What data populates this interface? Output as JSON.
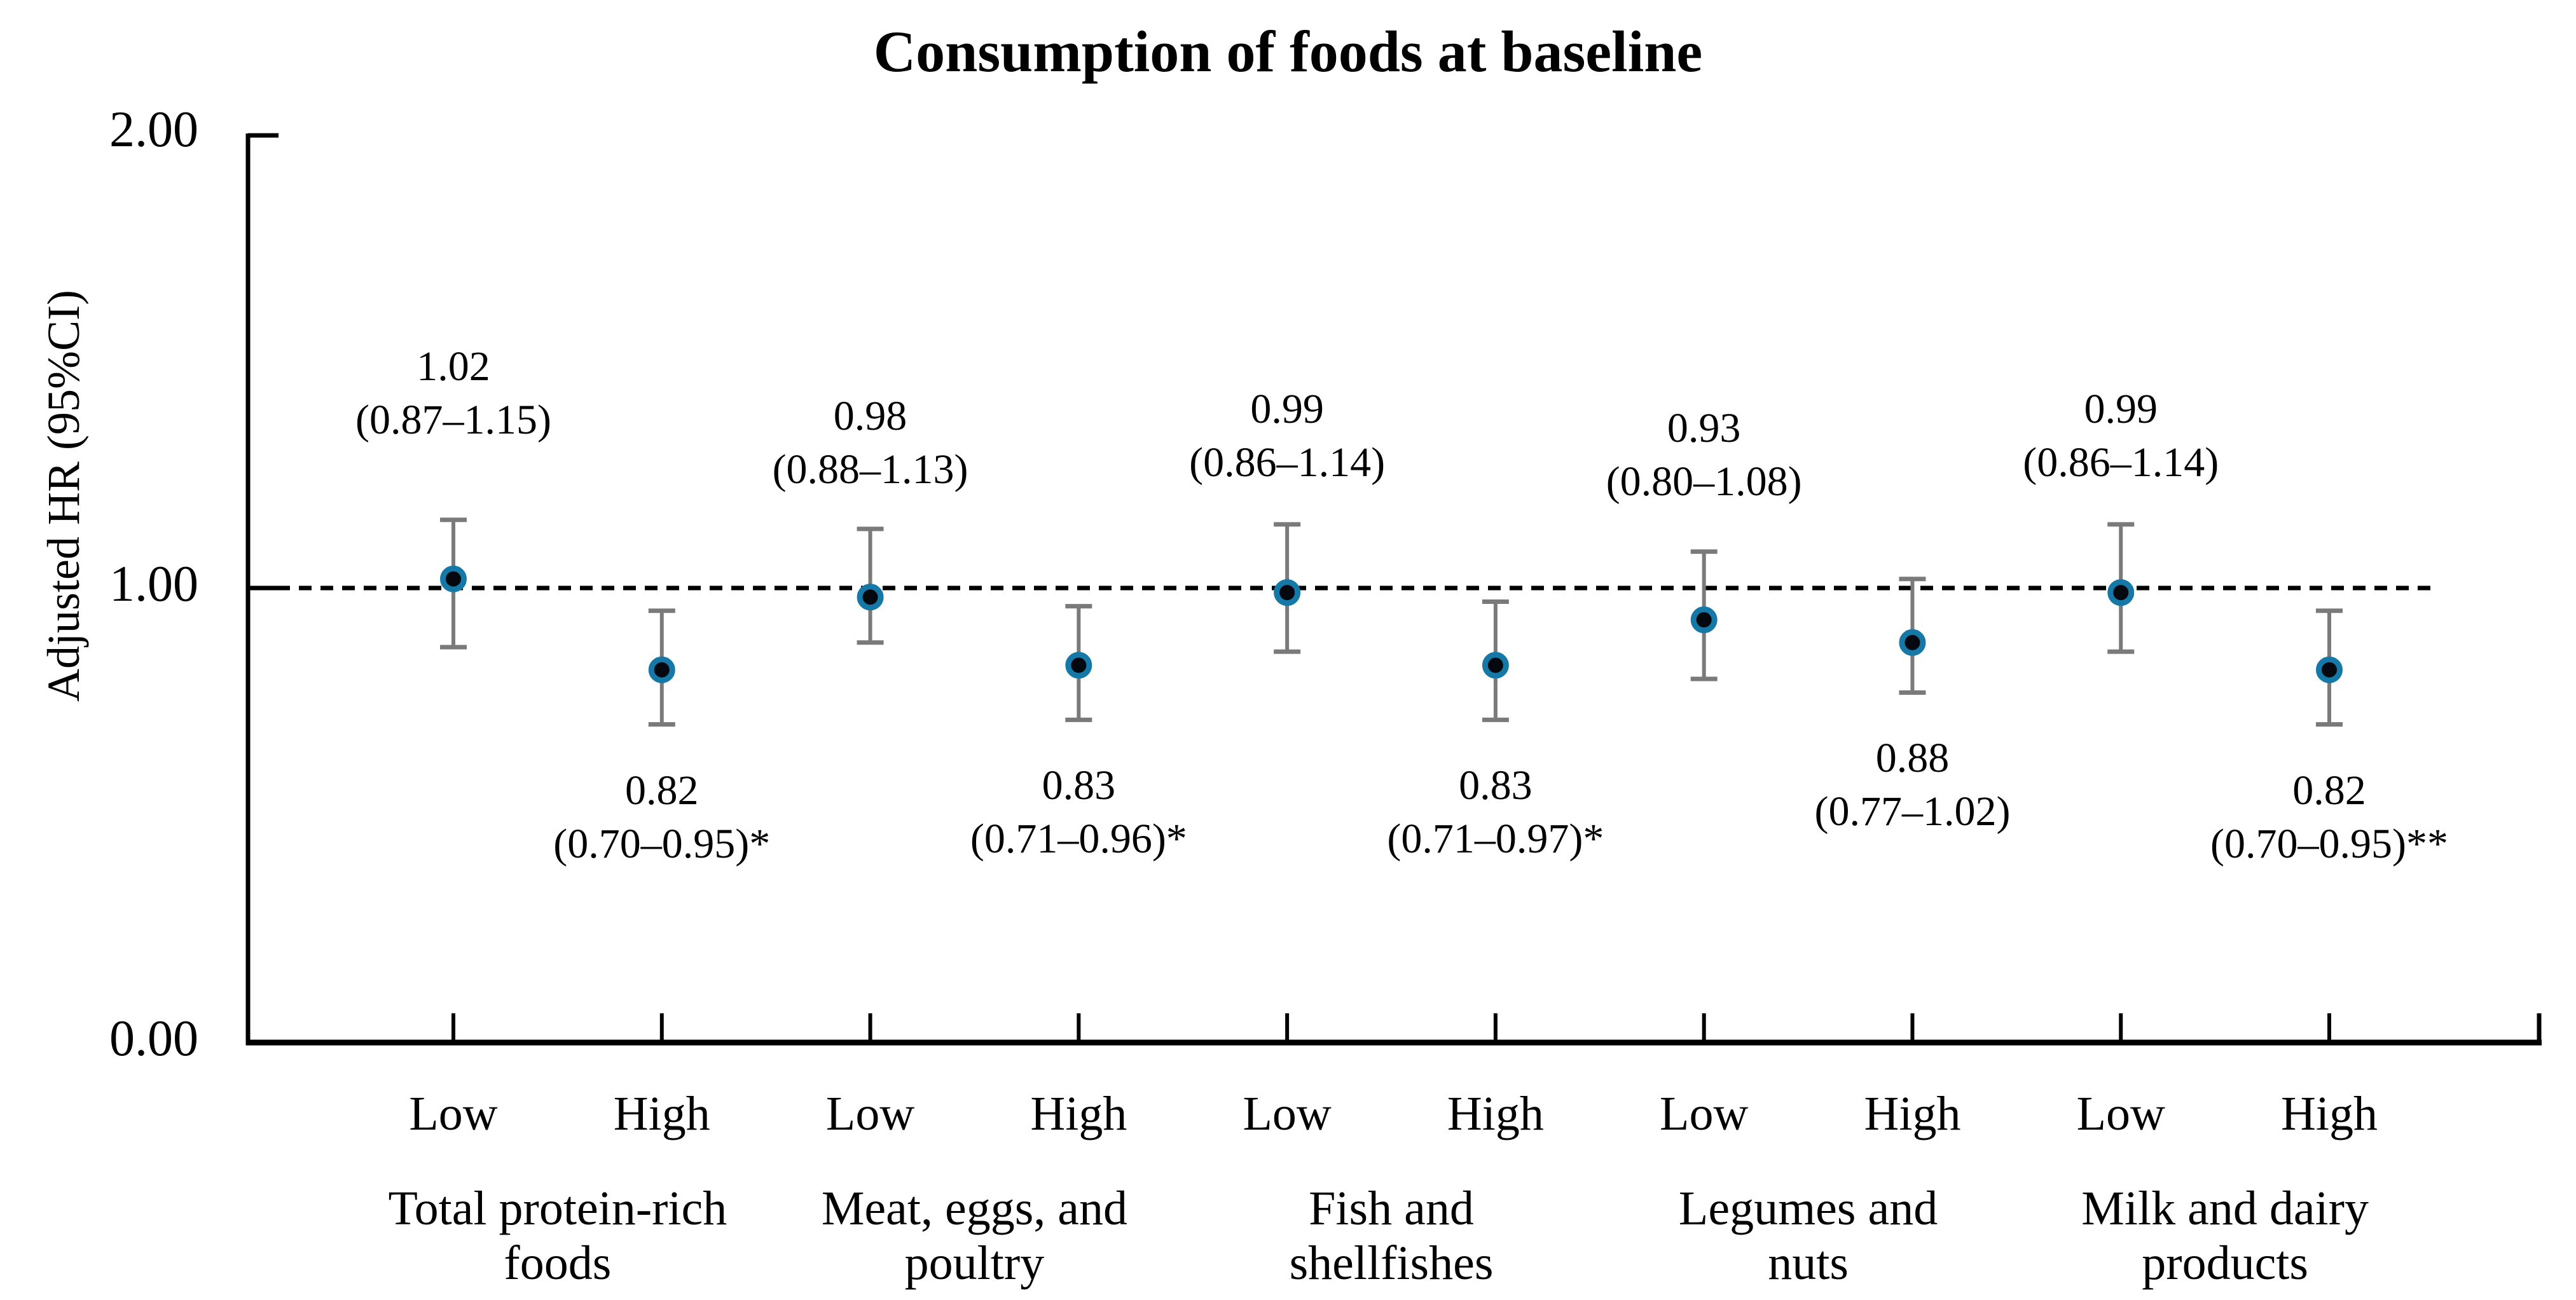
{
  "chart_data": {
    "type": "scatter",
    "subtype": "point-estimates-with-95ci-error-bars",
    "title": "Consumption of foods at baseline",
    "ylabel": "Adjusted HR (95%CI)",
    "xlabel": "",
    "ylim": [
      0,
      2
    ],
    "grid": "off",
    "legend": "none",
    "reference_line": {
      "value": 1.0,
      "style": "dashed",
      "color": "#000000"
    },
    "yticks": [
      {
        "value": 2.0,
        "label": "2.00"
      },
      {
        "value": 1.0,
        "label": "1.00"
      },
      {
        "value": 0.0,
        "label": "0.00"
      }
    ],
    "groups": [
      {
        "name": "Total protein-rich foods",
        "label_lines": [
          "Total protein-rich",
          "foods"
        ]
      },
      {
        "name": "Meat, eggs, and poultry",
        "label_lines": [
          "Meat, eggs, and",
          "poultry"
        ]
      },
      {
        "name": "Fish and shellfishes",
        "label_lines": [
          "Fish and",
          "shellfishes"
        ]
      },
      {
        "name": "Legumes and nuts",
        "label_lines": [
          "Legumes and",
          "nuts"
        ]
      },
      {
        "name": "Milk and dairy products",
        "label_lines": [
          "Milk and dairy",
          "products"
        ]
      }
    ],
    "points": [
      {
        "group": "Total protein-rich foods",
        "category": "Low",
        "hr": 1.02,
        "ci_low": 0.87,
        "ci_high": 1.15,
        "value_label": "1.02",
        "ci_label": "(0.87–1.15)",
        "label_position": "above"
      },
      {
        "group": "Total protein-rich foods",
        "category": "High",
        "hr": 0.82,
        "ci_low": 0.7,
        "ci_high": 0.95,
        "value_label": "0.82",
        "ci_label": "(0.70–0.95)*",
        "label_position": "below"
      },
      {
        "group": "Meat, eggs, and poultry",
        "category": "Low",
        "hr": 0.98,
        "ci_low": 0.88,
        "ci_high": 1.13,
        "value_label": "0.98",
        "ci_label": "(0.88–1.13)",
        "label_position": "above"
      },
      {
        "group": "Meat, eggs, and poultry",
        "category": "High",
        "hr": 0.83,
        "ci_low": 0.71,
        "ci_high": 0.96,
        "value_label": "0.83",
        "ci_label": "(0.71–0.96)*",
        "label_position": "below"
      },
      {
        "group": "Fish and shellfishes",
        "category": "Low",
        "hr": 0.99,
        "ci_low": 0.86,
        "ci_high": 1.14,
        "value_label": "0.99",
        "ci_label": "(0.86–1.14)",
        "label_position": "above"
      },
      {
        "group": "Fish and shellfishes",
        "category": "High",
        "hr": 0.83,
        "ci_low": 0.71,
        "ci_high": 0.97,
        "value_label": "0.83",
        "ci_label": "(0.71–0.97)*",
        "label_position": "below"
      },
      {
        "group": "Legumes and nuts",
        "category": "Low",
        "hr": 0.93,
        "ci_low": 0.8,
        "ci_high": 1.08,
        "value_label": "0.93",
        "ci_label": "(0.80–1.08)",
        "label_position": "above"
      },
      {
        "group": "Legumes and nuts",
        "category": "High",
        "hr": 0.88,
        "ci_low": 0.77,
        "ci_high": 1.02,
        "value_label": "0.88",
        "ci_label": "(0.77–1.02)",
        "label_position": "below"
      },
      {
        "group": "Milk and dairy products",
        "category": "Low",
        "hr": 0.99,
        "ci_low": 0.86,
        "ci_high": 1.14,
        "value_label": "0.99",
        "ci_label": "(0.86–1.14)",
        "label_position": "above"
      },
      {
        "group": "Milk and dairy products",
        "category": "High",
        "hr": 0.82,
        "ci_low": 0.7,
        "ci_high": 0.95,
        "value_label": "0.82",
        "ci_label": "(0.70–0.95)**",
        "label_position": "below"
      }
    ],
    "colors": {
      "background": "#ffffff",
      "axis": "#000000",
      "text": "#000000",
      "error_bar": "#7a7a7a",
      "marker_ring": "#1578a6",
      "marker_fill": "#04090f",
      "reference_line": "#000000"
    }
  }
}
